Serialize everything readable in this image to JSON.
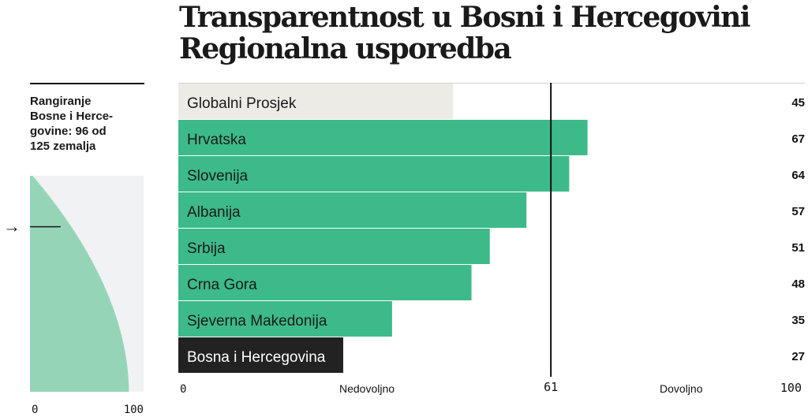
{
  "title_line1": "Transparentnost u Bosni i Hercegovini",
  "title_line2": "Regionalna usporedba",
  "ranking": {
    "text": "Rangiranje Bosne i Herce-govine: 96 od 125 zemalja",
    "lines": [
      "Rangiranje",
      "Bosne i Herce-",
      "govine: 96 od",
      "125 zemalja"
    ],
    "rank": 96,
    "total": 125,
    "arrow": "→",
    "axis_min_label": "0",
    "axis_max_label": "100"
  },
  "colors": {
    "green": "#3dba8a",
    "green_light": "#96d4b8",
    "global": "#ecebe6",
    "bih": "#222222",
    "mini_bg": "#f1f2f4"
  },
  "chart_data": {
    "type": "bar",
    "orientation": "horizontal",
    "categories": [
      "Globalni Prosjek",
      "Hrvatska",
      "Slovenija",
      "Albanija",
      "Srbija",
      "Crna Gora",
      "Sjeverna Makedonija",
      "Bosna i Hercegovina"
    ],
    "values": [
      45,
      67,
      64,
      57,
      51,
      48,
      35,
      27
    ],
    "xlim": [
      0,
      100
    ],
    "reference_line": {
      "value": 61,
      "label": "61"
    },
    "zone_labels": {
      "below": "Nedovoljno",
      "above": "Dovoljno"
    },
    "x_tick_labels": {
      "min": "0",
      "max": "100"
    },
    "bar_styles": [
      "global",
      "green",
      "green",
      "green",
      "green",
      "green",
      "green",
      "bih"
    ],
    "mini_distribution": {
      "description": "scores of 125 countries, sorted ascending",
      "count": 125,
      "min": 3,
      "max": 87,
      "highlight_rank": 96,
      "highlight_value": 27
    }
  }
}
